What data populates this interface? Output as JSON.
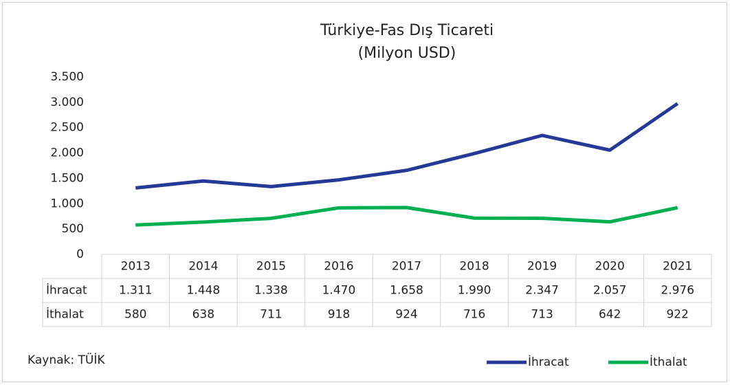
{
  "chart_data": {
    "type": "line",
    "title": "Türkiye-Fas Dış Ticareti",
    "subtitle": "(Milyon USD)",
    "categories": [
      "2013",
      "2014",
      "2015",
      "2016",
      "2017",
      "2018",
      "2019",
      "2020",
      "2021"
    ],
    "series": [
      {
        "name": "İhracat",
        "color": "#253a97",
        "values": [
          1311,
          1448,
          1338,
          1470,
          1658,
          1990,
          2347,
          2057,
          2976
        ],
        "value_labels": [
          "1.311",
          "1.448",
          "1.338",
          "1.470",
          "1.658",
          "1.990",
          "2.347",
          "2.057",
          "2.976"
        ]
      },
      {
        "name": "İthalat",
        "color": "#00b050",
        "values": [
          580,
          638,
          711,
          918,
          924,
          716,
          713,
          642,
          922
        ]
      }
    ],
    "ylim": [
      0,
      3500
    ],
    "yticks": [
      0,
      500,
      {
        "value": 1000,
        "label": "1.000"
      },
      {
        "value": 1500,
        "label": "1.500"
      },
      {
        "value": 2000,
        "label": "2.000"
      },
      {
        "value": 2500,
        "label": "2.500"
      },
      {
        "value": 3000,
        "label": "3.000"
      },
      {
        "value": 3500,
        "label": "3.500"
      }
    ],
    "grid": false,
    "legend": "bottom-right",
    "data_table": true,
    "source": "Kaynak: TÜİK"
  }
}
